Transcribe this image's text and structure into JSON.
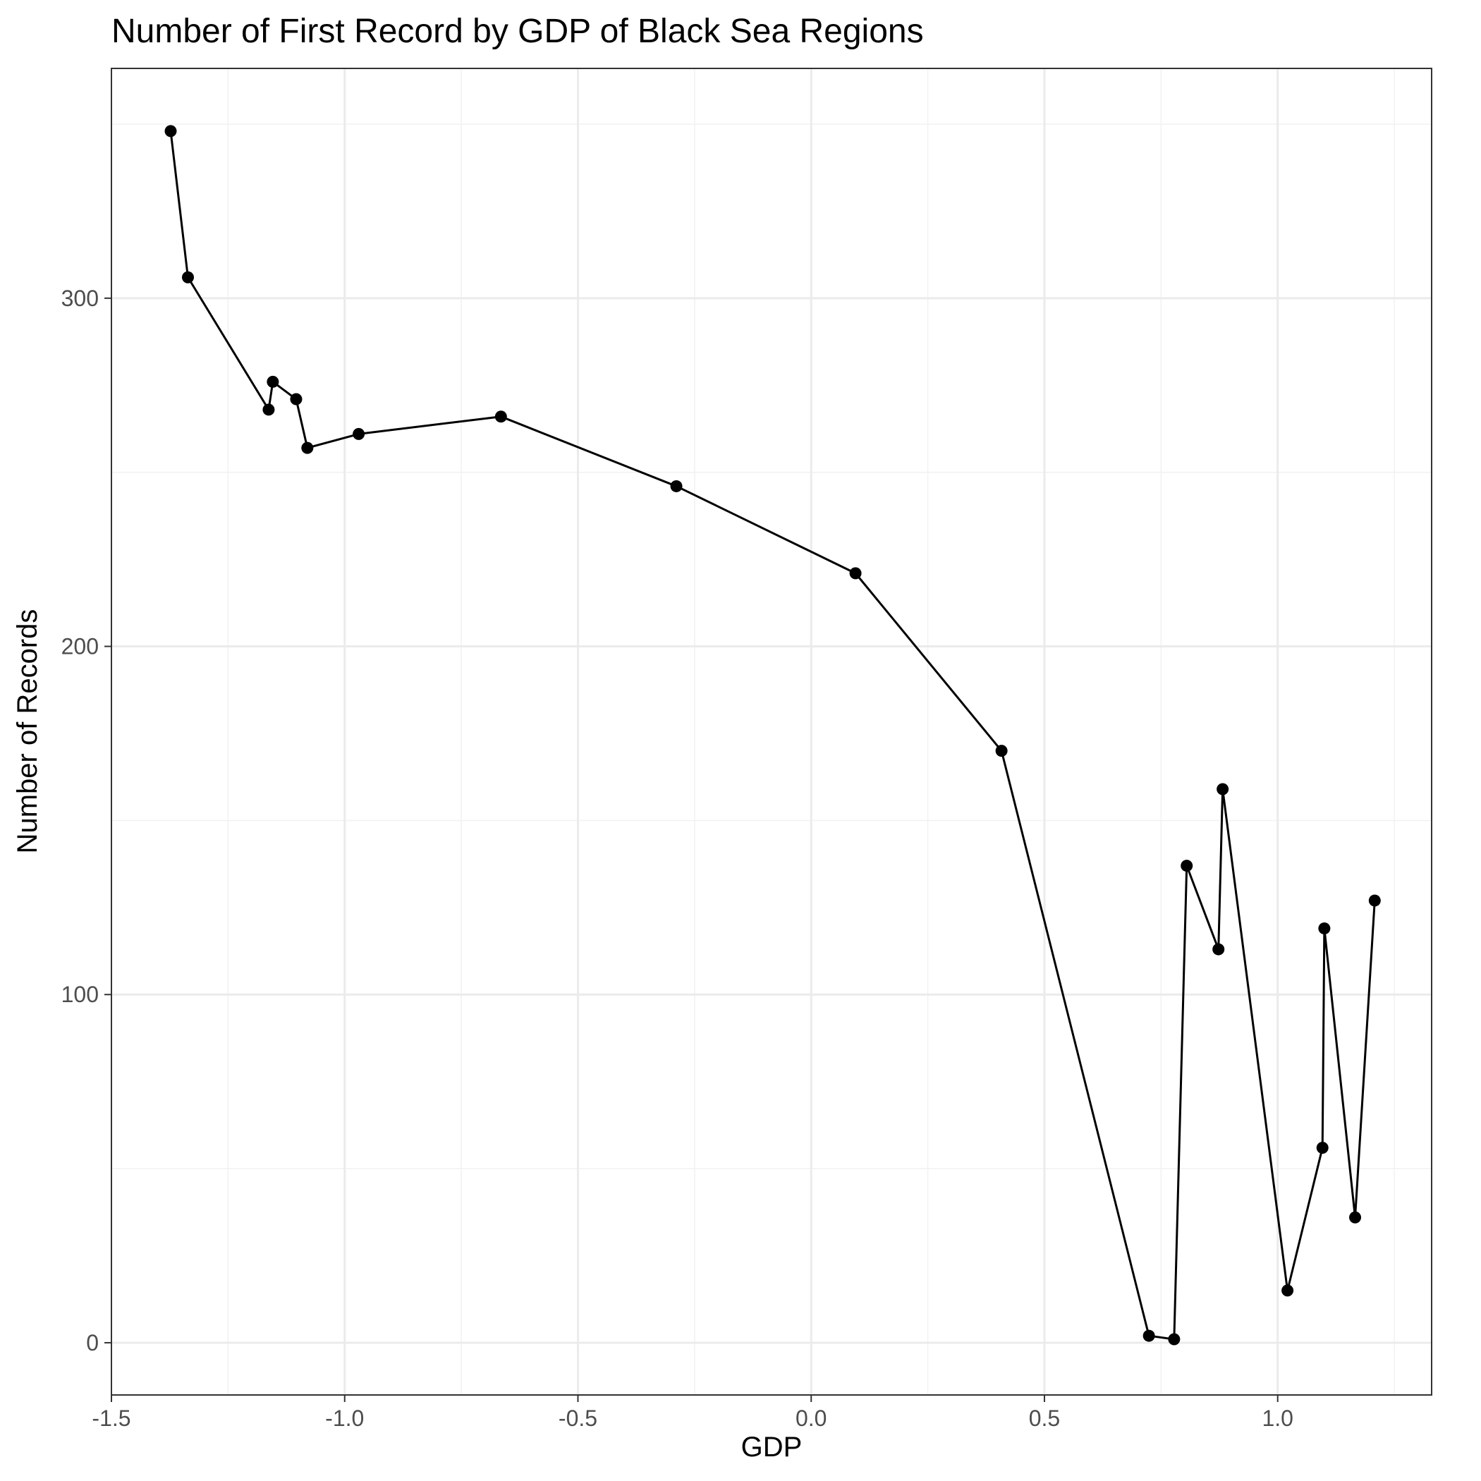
{
  "chart_data": {
    "type": "line",
    "title": "Number of First Record by GDP of Black Sea Regions",
    "xlabel": "GDP",
    "ylabel": "Number of Records",
    "xlim": [
      -1.5,
      1.33
    ],
    "ylim": [
      -15,
      366
    ],
    "x_ticks": [
      -1.5,
      -1.0,
      -0.5,
      0.0,
      0.5,
      1.0
    ],
    "x_tick_labels": [
      "-1.5",
      "-1.0",
      "-0.5",
      "0.0",
      "0.5",
      "1.0"
    ],
    "y_ticks": [
      0,
      100,
      200,
      300
    ],
    "y_tick_labels": [
      "0",
      "100",
      "200",
      "300"
    ],
    "grid": true,
    "legend": "none",
    "color": "#000000",
    "points": [
      {
        "x": -1.373,
        "y": 348
      },
      {
        "x": -1.336,
        "y": 306
      },
      {
        "x": -1.163,
        "y": 268
      },
      {
        "x": -1.154,
        "y": 276
      },
      {
        "x": -1.104,
        "y": 271
      },
      {
        "x": -1.08,
        "y": 257
      },
      {
        "x": -0.97,
        "y": 261
      },
      {
        "x": -0.665,
        "y": 266
      },
      {
        "x": -0.289,
        "y": 246
      },
      {
        "x": 0.095,
        "y": 221
      },
      {
        "x": 0.408,
        "y": 170
      },
      {
        "x": 0.724,
        "y": 2
      },
      {
        "x": 0.778,
        "y": 1
      },
      {
        "x": 0.805,
        "y": 137
      },
      {
        "x": 0.873,
        "y": 113
      },
      {
        "x": 0.882,
        "y": 159
      },
      {
        "x": 1.021,
        "y": 15
      },
      {
        "x": 1.096,
        "y": 56
      },
      {
        "x": 1.1,
        "y": 119
      },
      {
        "x": 1.166,
        "y": 36
      },
      {
        "x": 1.208,
        "y": 127
      }
    ]
  }
}
